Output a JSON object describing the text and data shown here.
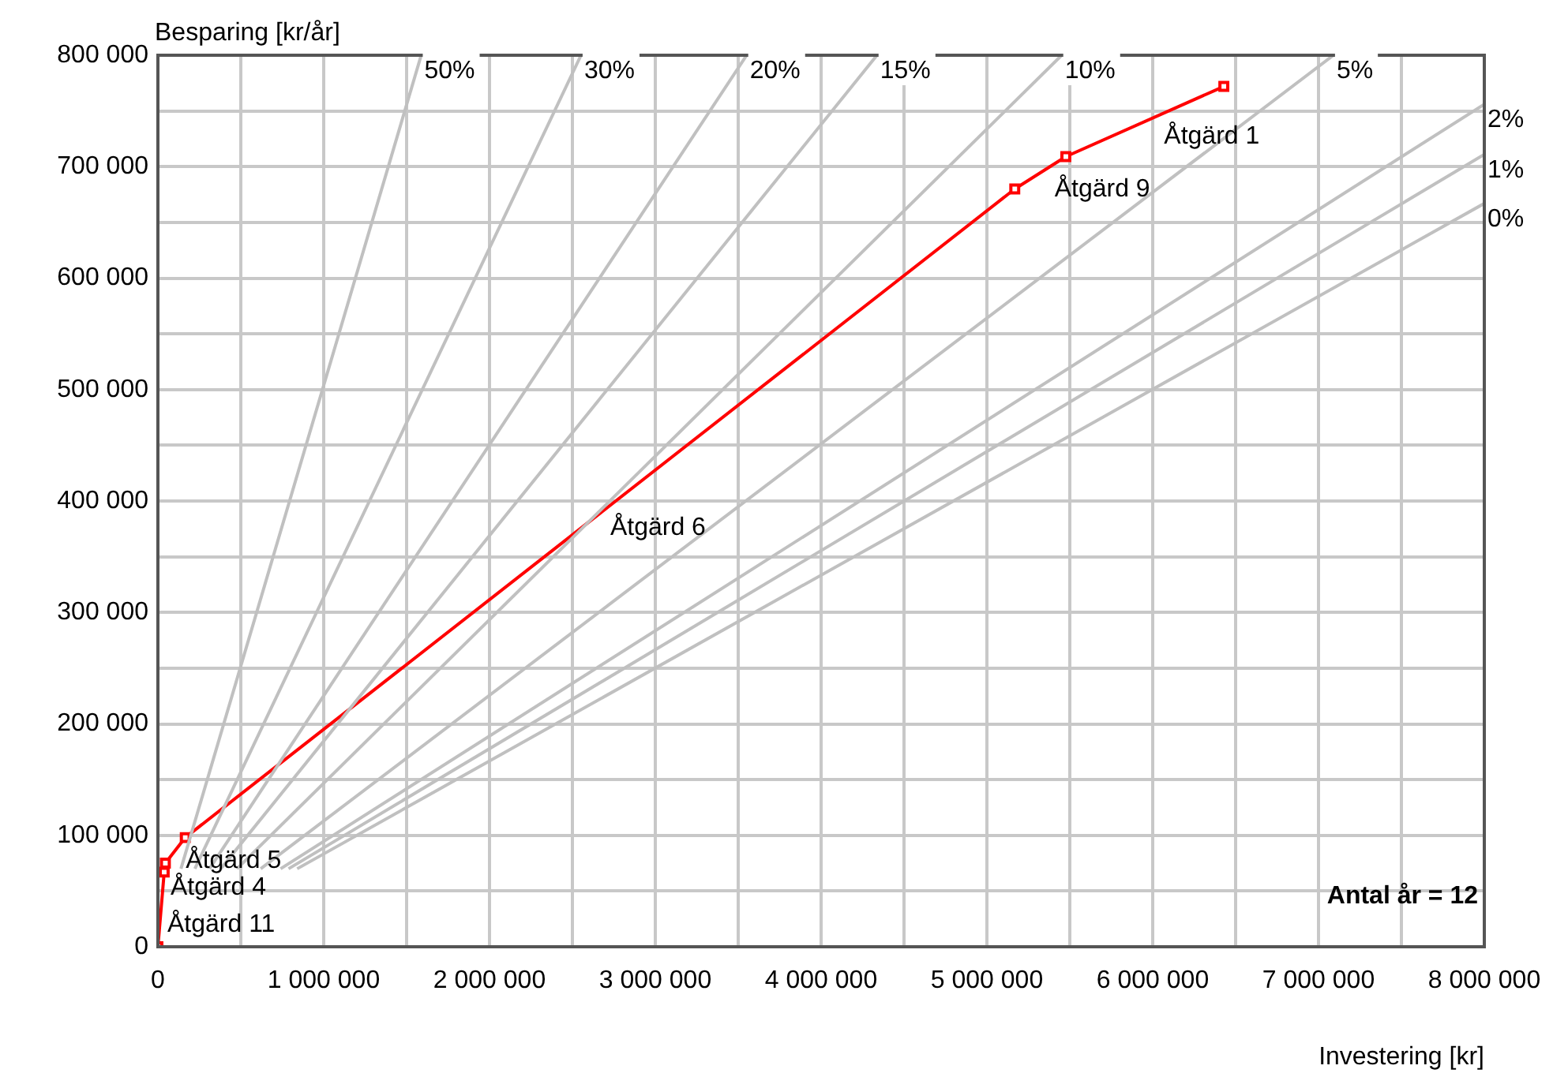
{
  "chart_data": {
    "type": "line",
    "xlabel": "Investering [kr]",
    "ylabel": "Besparing [kr/år]",
    "xlim": [
      0,
      8000000
    ],
    "ylim": [
      0,
      800000
    ],
    "xticks": [
      0,
      {
        "value": 500000,
        "label": null
      },
      {
        "value": 1000000,
        "label": "1 000 000"
      },
      {
        "value": 1500000,
        "label": null
      },
      {
        "value": 2000000,
        "label": "2 000 000"
      },
      {
        "value": 2500000,
        "label": null
      },
      {
        "value": 3000000,
        "label": "3 000 000"
      },
      {
        "value": 3500000,
        "label": null
      },
      {
        "value": 4000000,
        "label": "4 000 000"
      },
      {
        "value": 4500000,
        "label": null
      },
      {
        "value": 5000000,
        "label": "5 000 000"
      },
      {
        "value": 5500000,
        "label": null
      },
      {
        "value": 6000000,
        "label": "6 000 000"
      },
      {
        "value": 6500000,
        "label": null
      },
      {
        "value": 7000000,
        "label": "7 000 000"
      },
      {
        "value": 7500000,
        "label": null
      },
      {
        "value": 8000000,
        "label": "8 000 000"
      }
    ],
    "yticks": [
      0,
      {
        "value": 50000,
        "label": null
      },
      {
        "value": 100000,
        "label": "100 000"
      },
      {
        "value": 150000,
        "label": null
      },
      {
        "value": 200000,
        "label": "200 000"
      },
      {
        "value": 250000,
        "label": null
      },
      {
        "value": 300000,
        "label": "300 000"
      },
      {
        "value": 350000,
        "label": null
      },
      {
        "value": 400000,
        "label": "400 000"
      },
      {
        "value": 450000,
        "label": null
      },
      {
        "value": 500000,
        "label": "500 000"
      },
      {
        "value": 550000,
        "label": null
      },
      {
        "value": 600000,
        "label": "600 000"
      },
      {
        "value": 650000,
        "label": null
      },
      {
        "value": 700000,
        "label": "700 000"
      },
      {
        "value": 750000,
        "label": null
      },
      {
        "value": 800000,
        "label": "800 000"
      }
    ],
    "grid": true,
    "line_style": "solid",
    "series": [
      {
        "name": "50%",
        "color": "#c0c0c0",
        "marker": "none",
        "x": [
          139000,
          1588000
        ],
        "values": [
          70000,
          800000
        ]
      },
      {
        "name": "30%",
        "color": "#c0c0c0",
        "marker": "none",
        "x": [
          223000,
          2552000
        ],
        "values": [
          70000,
          800000
        ]
      },
      {
        "name": "20%",
        "color": "#c0c0c0",
        "marker": "none",
        "x": [
          311000,
          3551000
        ],
        "values": [
          70000,
          800000
        ]
      },
      {
        "name": "15%",
        "color": "#c0c0c0",
        "marker": "none",
        "x": [
          379000,
          4337000
        ],
        "values": [
          70000,
          800000
        ]
      },
      {
        "name": "10%",
        "color": "#c0c0c0",
        "marker": "none",
        "x": [
          477000,
          5451000
        ],
        "values": [
          70000,
          800000
        ]
      },
      {
        "name": "5%",
        "color": "#c0c0c0",
        "marker": "none",
        "x": [
          620000,
          7090000
        ],
        "values": [
          70000,
          800000
        ]
      },
      {
        "name": "2%",
        "color": "#c0c0c0",
        "marker": "none",
        "x": [
          740000,
          8000000
        ],
        "values": [
          70000,
          756000
        ]
      },
      {
        "name": "1%",
        "color": "#c0c0c0",
        "marker": "none",
        "x": [
          788000,
          8000000
        ],
        "values": [
          70000,
          711000
        ]
      },
      {
        "name": "0%",
        "color": "#c0c0c0",
        "marker": "none",
        "x": [
          840000,
          8000000
        ],
        "values": [
          70000,
          667000
        ]
      },
      {
        "color": "#ff0000",
        "marker": "square",
        "x": [
          0,
          38000,
          45000,
          165000,
          5168000,
          5476000,
          6429000
        ],
        "values": [
          0,
          67000,
          75000,
          98000,
          680000,
          709000,
          772000
        ]
      }
    ],
    "annotations": [
      {
        "text": "Åtgärd 11",
        "x": 19000,
        "y": 33500
      },
      {
        "text": "Åtgärd 4",
        "x": 38000,
        "y": 67000
      },
      {
        "text": "Åtgärd 5",
        "x": 130000,
        "y": 91300
      },
      {
        "text": "Åtgärd 6",
        "x": 2690000,
        "y": 390000
      },
      {
        "text": "Åtgärd 9",
        "x": 5370000,
        "y": 694000
      },
      {
        "text": "Åtgärd 1",
        "x": 6030000,
        "y": 741000
      },
      "Antal år = 12"
    ]
  }
}
